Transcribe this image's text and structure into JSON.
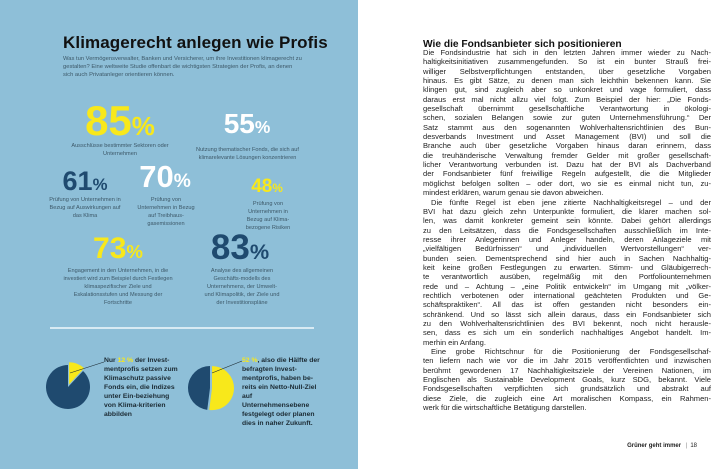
{
  "infographic": {
    "title": "Klimagerecht anlegen wie Profis",
    "intro": "Was tun Vermögensverwalter, Banken und Versicherer, um ihre Investitionen klimagerecht zu gestalten? Eine weltweite Studie offenbart die wichtigsten Strategien der Profis, an denen sich auch Privatanleger orientieren können.",
    "colors": {
      "background": "#8ebfd8",
      "yellow": "#f8e81b",
      "dark": "#1f4a6f",
      "white": "#ffffff"
    },
    "stats": [
      {
        "value": "85",
        "unit": "%",
        "label": "Ausschlüsse bestimmter Sektoren oder Unternehmen"
      },
      {
        "value": "55",
        "unit": "%",
        "label": "Nutzung thematischer Fonds, die sich auf klimarelevante Lösungen konzentrieren"
      },
      {
        "value": "61",
        "unit": "%",
        "label": "Prüfung von Unternehmen in Bezug auf Auswirkungen auf das Klima"
      },
      {
        "value": "70",
        "unit": "%",
        "label": "Prüfung von Unternehmen in Bezug auf Treibhaus-gasemissionen"
      },
      {
        "value": "48",
        "unit": "%",
        "label": "Prüfung von Unternehmen in Bezug auf Klima-bezogene Risiken"
      },
      {
        "value": "73",
        "unit": "%",
        "label": "Engagement in den Unternehmen, in die investiert wird zum Beispiel durch Festlegen klimaspezifischer Ziele und Eskalationsstufen und Messung der Fortschritte"
      },
      {
        "value": "83",
        "unit": "%",
        "label": "Analyse des allgemeinen Geschäfts-modells des Unternehmens, der Umwelt- und Klimapolitik, der Ziele und der Investitionspläne"
      }
    ],
    "pies": [
      {
        "percent": 12,
        "highlight": "12 %",
        "before": "Nur ",
        "after": " der Invest-mentprofis setzen zum Klimaschutz passive Fonds ein, die Indizes unter Ein-beziehung von Klima-kriterien abbilden"
      },
      {
        "percent": 52,
        "highlight": "52 %",
        "before": "",
        "after": ", also die Hälfte der befragten Invest-mentprofis, haben be-reits ein Netto-Null-Ziel auf Unternehmensebene festgelegt oder planen dies in naher Zukunft."
      }
    ]
  },
  "article": {
    "heading": "Wie die Fondsanbieter sich positionieren",
    "paragraphs": [
      [
        "Die Fondsindustrie hat sich in den letzten Jahren immer wieder zu Nach-",
        "haltigkeitsinitiativen zusammengefunden. So ist ein bunter Strauß frei-",
        "williger Selbstverpflichtungen entstanden, über gesetzliche Vorgaben",
        "hinaus. Es gibt Sätze, zu denen man sich leichthin bekennen kann. Sie",
        "klingen gut, sind zugleich aber so unkonkret und vage formuliert, dass",
        "daraus erst mal nicht allzu viel folgt. Zum Beispiel der hier: „Die Fonds-",
        "gesellschaft übernimmt gesellschaftliche Verantwortung in ökologi-",
        "schen, sozialen Belangen sowie zur guten Unternehmensführung.“ Der",
        "Satz stammt aus den sogenannten Wohlverhaltensrichtlinien des Bun-",
        "desverbands Investment und Asset Management (BVI) und soll die",
        "Branche auch über gesetzliche Vorgaben hinaus daran erinnern, dass",
        "die treuhänderische Verwaltung fremder Gelder mit großer gesellschaft-",
        "licher Verantwortung verbunden ist. Dazu hat der BVI als Dachverband",
        "der Fondsanbieter fünf freiwillige Regeln aufgestellt, die die Mitglieder",
        "möglichst befolgen sollten – oder dort, wo sie es einmal nicht tun, zu-",
        "mindest erklären, warum genau sie davon abweichen."
      ],
      [
        "Die fünfte Regel ist eben jene zitierte Nachhaltigkeitsregel – und der",
        "BVI hat dazu gleich zehn Unterpunkte formuliert, die klarer machen sol-",
        "len, was damit konkreter gemeint sein könnte. Dabei gehört allerdings",
        "zu den Leitsätzen, dass die Fondsgesellschaften ausschließlich im Inte-",
        "resse ihrer Anlegerinnen und Anleger handeln, deren Anlageziele mit",
        "„vielfältigen Bedürfnissen“ und „individuellen Wertvorstellungen“ ver-",
        "bunden seien. Dementsprechend sind hier auch in Sachen Nachhaltig-",
        "keit keine großen Festlegungen zu erwarten. Stimm- und Gläubigerrech-",
        "te verantwortlich ausüben, regelmäßig mit den Portfoliounternehmen",
        "rede und – Achtung – „eine Politik entwickeln“ im Umgang mit „völker-",
        "rechtlich verbotenen oder international geächteten Produkten und Ge-",
        "schäftspraktiken“. All das ist offen gestanden nicht besonders ein-",
        "schränkend. Und so lässt sich allein daraus, dass ein Fondsanbieter sich",
        "zu den Wohlverhaltensrichtlinien des BVI bekennt, noch nicht herausle-",
        "sen, dass es sich um ein sonderlich nachhaltiges Angebot handelt. Im-",
        "merhin ein Anfang."
      ],
      [
        "Eine grobe Richtschnur für die Positionierung der Fondsgesellschaf-",
        "ten liefern nach wie vor die im Jahr 2015 veröffentlichten und inzwischen",
        "berühmt gewordenen 17 Nachhaltigkeitsziele der Vereinen Nationen, im",
        "Englischen als Sustainable Development Goals, kurz SDG, bekannt. Viele",
        "Fondsgesellschaften verpflichten sich grundsätzlich und abstrakt auf",
        "diese Ziele, die zugleich eine Art moralischen Kompass, ein Rahmen-",
        "werk für die wirtschaftliche Betätigung darstellen."
      ]
    ]
  },
  "footer": {
    "section": "Grüner geht immer",
    "separator": "|",
    "page": "18"
  }
}
